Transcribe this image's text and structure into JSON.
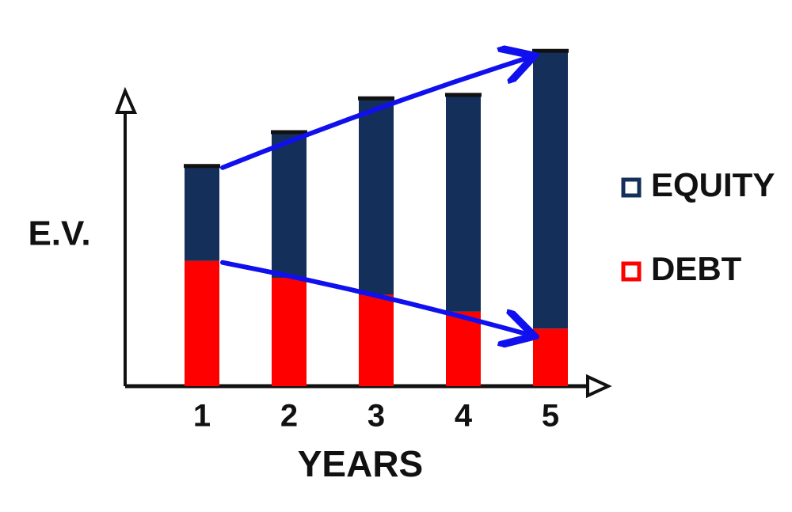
{
  "chart_data": {
    "type": "stacked_bar",
    "y_label": "E.V.",
    "x_label": "YEARS",
    "categories": [
      "1",
      "2",
      "3",
      "4",
      "5"
    ],
    "series": [
      {
        "name": "DEBT",
        "color": "#ff0000",
        "values": [
          37,
          32,
          27,
          22,
          17
        ]
      },
      {
        "name": "EQUITY",
        "color": "#142f5a",
        "values": [
          28,
          43,
          58,
          64,
          82
        ]
      }
    ],
    "ylim": [
      0,
      100
    ],
    "legend": "right",
    "arrow_color": "#1010ee"
  }
}
